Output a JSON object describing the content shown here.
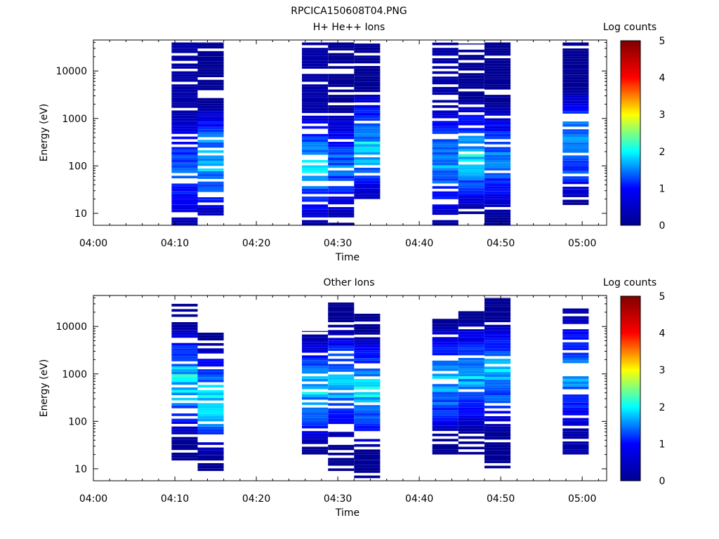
{
  "figure_title": "RPCICA150608T04.PNG",
  "colorbar": {
    "label": "Log counts",
    "range": [
      0,
      5
    ],
    "ticks": [
      "0",
      "1",
      "2",
      "3",
      "4",
      "5"
    ],
    "colormap": [
      "#00008f",
      "#0000ff",
      "#00ffff",
      "#ffff00",
      "#ff0000",
      "#800000"
    ]
  },
  "chart_data": [
    {
      "type": "heatmap",
      "title": "H+ He++ Ions",
      "xlabel": "Time",
      "ylabel": "Energy (eV)",
      "y_scale": "log",
      "xlim": [
        "04:00",
        "05:03"
      ],
      "ylim": [
        5.6,
        45000
      ],
      "x_ticks": [
        "04:00",
        "04:10",
        "04:20",
        "04:30",
        "04:40",
        "04:50",
        "05:00"
      ],
      "y_ticks": [
        "10",
        "100",
        "1000",
        "10000"
      ],
      "z_label": "Log counts",
      "zlim": [
        0,
        5
      ],
      "x_bins": [
        {
          "start": "04:09.6",
          "end": "04:12.8",
          "e_min": 5.6,
          "e_max": 40000,
          "log_counts_range": [
            0.2,
            1.3
          ]
        },
        {
          "start": "04:12.8",
          "end": "04:16.0",
          "e_min": 9,
          "e_max": 40000,
          "log_counts_range": [
            0.1,
            2.2
          ]
        },
        {
          "start": "04:25.6",
          "end": "04:28.8",
          "e_min": 5.6,
          "e_max": 40000,
          "log_counts_range": [
            0.2,
            2.0
          ]
        },
        {
          "start": "04:28.8",
          "end": "04:32.0",
          "e_min": 5.6,
          "e_max": 40000,
          "log_counts_range": [
            0.1,
            1.5
          ]
        },
        {
          "start": "04:32.0",
          "end": "04:35.2",
          "e_min": 20,
          "e_max": 38000,
          "log_counts_range": [
            0.1,
            2.1
          ]
        },
        {
          "start": "04:41.6",
          "end": "04:44.8",
          "e_min": 5.6,
          "e_max": 40000,
          "log_counts_range": [
            0.2,
            1.8
          ]
        },
        {
          "start": "04:44.8",
          "end": "04:48.0",
          "e_min": 8.5,
          "e_max": 38000,
          "log_counts_range": [
            0.1,
            2.1
          ]
        },
        {
          "start": "04:48.0",
          "end": "04:51.2",
          "e_min": 5.6,
          "e_max": 40000,
          "log_counts_range": [
            0.1,
            1.6
          ]
        },
        {
          "start": "04:57.6",
          "end": "05:00.8",
          "e_min": 15,
          "e_max": 40000,
          "log_counts_range": [
            0.1,
            2.0
          ]
        }
      ]
    },
    {
      "type": "heatmap",
      "title": "Other Ions",
      "xlabel": "Time",
      "ylabel": "Energy (eV)",
      "y_scale": "log",
      "xlim": [
        "04:00",
        "05:03"
      ],
      "ylim": [
        5.6,
        45000
      ],
      "x_ticks": [
        "04:00",
        "04:10",
        "04:20",
        "04:30",
        "04:40",
        "04:50",
        "05:00"
      ],
      "y_ticks": [
        "10",
        "100",
        "1000",
        "10000"
      ],
      "z_label": "Log counts",
      "zlim": [
        0,
        5
      ],
      "x_bins": [
        {
          "start": "04:09.6",
          "end": "04:12.8",
          "e_min": 15,
          "e_max": 30000,
          "log_counts_range": [
            0.1,
            2.3
          ]
        },
        {
          "start": "04:12.8",
          "end": "04:16.0",
          "e_min": 9,
          "e_max": 7500,
          "log_counts_range": [
            0.1,
            2.2
          ]
        },
        {
          "start": "04:25.6",
          "end": "04:28.8",
          "e_min": 20,
          "e_max": 8000,
          "log_counts_range": [
            0.1,
            2.0
          ]
        },
        {
          "start": "04:28.8",
          "end": "04:32.0",
          "e_min": 9,
          "e_max": 32000,
          "log_counts_range": [
            0.1,
            2.1
          ]
        },
        {
          "start": "04:32.0",
          "end": "04:35.2",
          "e_min": 5.6,
          "e_max": 21000,
          "log_counts_range": [
            0.1,
            2.2
          ]
        },
        {
          "start": "04:41.6",
          "end": "04:44.8",
          "e_min": 20,
          "e_max": 16000,
          "log_counts_range": [
            0.1,
            2.0
          ]
        },
        {
          "start": "04:44.8",
          "end": "04:48.0",
          "e_min": 20,
          "e_max": 21000,
          "log_counts_range": [
            0.1,
            1.9
          ]
        },
        {
          "start": "04:48.0",
          "end": "04:51.2",
          "e_min": 9,
          "e_max": 40000,
          "log_counts_range": [
            0.1,
            2.0
          ]
        },
        {
          "start": "04:57.6",
          "end": "05:00.8",
          "e_min": 20,
          "e_max": 24000,
          "log_counts_range": [
            0.2,
            1.8
          ]
        }
      ]
    }
  ]
}
